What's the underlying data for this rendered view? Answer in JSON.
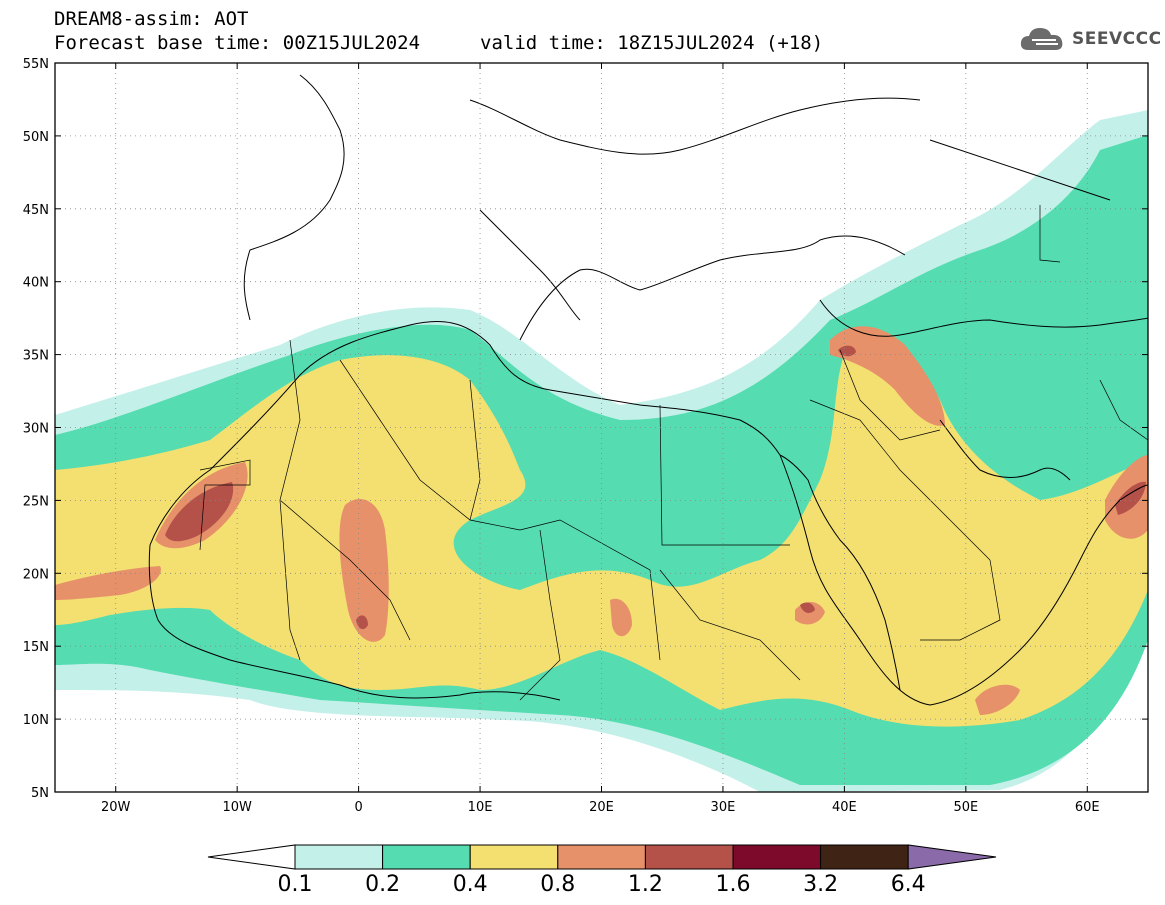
{
  "title": {
    "line1": "DREAM8-assim: AOT",
    "line2": "Forecast base time: 00Z15JUL2024",
    "valid": "valid time: 18Z15JUL2024 (+18)"
  },
  "logo": {
    "text": "SEEVCCC",
    "icon": "cloud-icon"
  },
  "axes": {
    "lon_ticks": [
      "20W",
      "10W",
      "0",
      "10E",
      "20E",
      "30E",
      "40E",
      "50E",
      "60E"
    ],
    "lon_values": [
      -20,
      -10,
      0,
      10,
      20,
      30,
      40,
      50,
      60
    ],
    "lat_ticks": [
      "55N",
      "50N",
      "45N",
      "40N",
      "35N",
      "30N",
      "25N",
      "20N",
      "15N",
      "10N",
      "5N"
    ],
    "lat_values": [
      55,
      50,
      45,
      40,
      35,
      30,
      25,
      20,
      15,
      10,
      5
    ],
    "lon_range": [
      -25,
      65
    ],
    "lat_range": [
      5,
      55
    ]
  },
  "colorbar": {
    "labels": [
      "0.1",
      "0.2",
      "0.4",
      "0.8",
      "1.2",
      "1.6",
      "3.2",
      "6.4"
    ],
    "colors": [
      "#ffffff",
      "#c4f0ea",
      "#55dcb0",
      "#f3e070",
      "#e6916a",
      "#b4524a",
      "#7d0a2a",
      "#3f2415",
      "#8a6aa8"
    ]
  },
  "field_colors": {
    "l1": "#c4f0ea",
    "l2": "#55dcb0",
    "l3": "#f3e070",
    "l4": "#e6916a",
    "l5": "#b4524a"
  }
}
